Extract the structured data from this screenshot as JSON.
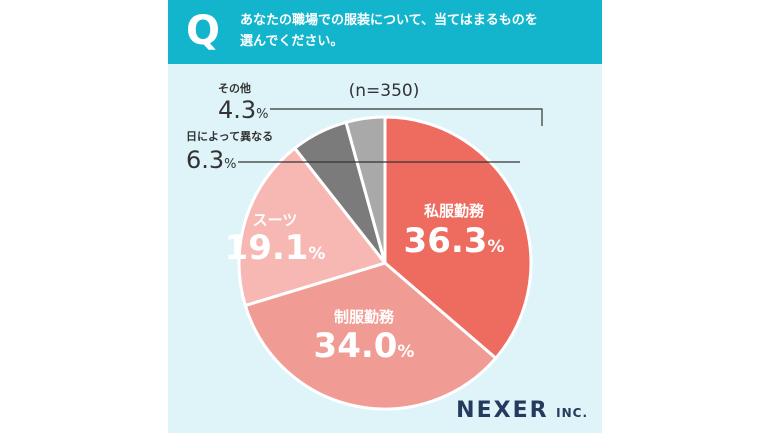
{
  "question": {
    "mark": "Q",
    "lines": [
      "あなたの職場での服装について、当てはまるものを",
      "選んでください。"
    ]
  },
  "chart_data": {
    "type": "pie",
    "n_label": "(n=350)",
    "categories": [
      "私服勤務",
      "制服勤務",
      "スーツ",
      "日によって異なる",
      "その他"
    ],
    "values": [
      36.3,
      34.0,
      19.1,
      6.3,
      4.3
    ],
    "colors": [
      "#ee6b60",
      "#f19b95",
      "#f7b8b3",
      "#7b7b7b",
      "#a9a9a9"
    ],
    "value_labels": [
      {
        "number": "36.3",
        "unit": "%"
      },
      {
        "number": "34.0",
        "unit": "%"
      },
      {
        "number": "19.1",
        "unit": "%"
      },
      {
        "number": "6.3",
        "unit": "%"
      },
      {
        "number": "4.3",
        "unit": "%"
      }
    ]
  },
  "brand": {
    "main": "NEXER",
    "suffix": "INC."
  }
}
